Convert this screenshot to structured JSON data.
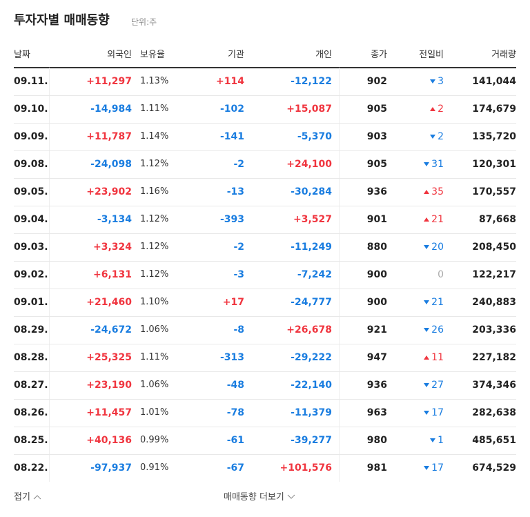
{
  "header": {
    "title": "투자자별 매매동향",
    "unit": "단위:주"
  },
  "table": {
    "columns": [
      "날짜",
      "외국인",
      "보유율",
      "기관",
      "개인",
      "종가",
      "전일비",
      "거래량"
    ],
    "rows": [
      {
        "date": "09.11.",
        "foreign": "+11,297",
        "holding": "1.13%",
        "institution": "+114",
        "individual": "-12,122",
        "close": "902",
        "change": "3",
        "dir": "down",
        "volume": "141,044"
      },
      {
        "date": "09.10.",
        "foreign": "-14,984",
        "holding": "1.11%",
        "institution": "-102",
        "individual": "+15,087",
        "close": "905",
        "change": "2",
        "dir": "up",
        "volume": "174,679"
      },
      {
        "date": "09.09.",
        "foreign": "+11,787",
        "holding": "1.14%",
        "institution": "-141",
        "individual": "-5,370",
        "close": "903",
        "change": "2",
        "dir": "down",
        "volume": "135,720"
      },
      {
        "date": "09.08.",
        "foreign": "-24,098",
        "holding": "1.12%",
        "institution": "-2",
        "individual": "+24,100",
        "close": "905",
        "change": "31",
        "dir": "down",
        "volume": "120,301"
      },
      {
        "date": "09.05.",
        "foreign": "+23,902",
        "holding": "1.16%",
        "institution": "-13",
        "individual": "-30,284",
        "close": "936",
        "change": "35",
        "dir": "up",
        "volume": "170,557"
      },
      {
        "date": "09.04.",
        "foreign": "-3,134",
        "holding": "1.12%",
        "institution": "-393",
        "individual": "+3,527",
        "close": "901",
        "change": "21",
        "dir": "up",
        "volume": "87,668"
      },
      {
        "date": "09.03.",
        "foreign": "+3,324",
        "holding": "1.12%",
        "institution": "-2",
        "individual": "-11,249",
        "close": "880",
        "change": "20",
        "dir": "down",
        "volume": "208,450"
      },
      {
        "date": "09.02.",
        "foreign": "+6,131",
        "holding": "1.12%",
        "institution": "-3",
        "individual": "-7,242",
        "close": "900",
        "change": "0",
        "dir": "flat",
        "volume": "122,217"
      },
      {
        "date": "09.01.",
        "foreign": "+21,460",
        "holding": "1.10%",
        "institution": "+17",
        "individual": "-24,777",
        "close": "900",
        "change": "21",
        "dir": "down",
        "volume": "240,883"
      },
      {
        "date": "08.29.",
        "foreign": "-24,672",
        "holding": "1.06%",
        "institution": "-8",
        "individual": "+26,678",
        "close": "921",
        "change": "26",
        "dir": "down",
        "volume": "203,336"
      },
      {
        "date": "08.28.",
        "foreign": "+25,325",
        "holding": "1.11%",
        "institution": "-313",
        "individual": "-29,222",
        "close": "947",
        "change": "11",
        "dir": "up",
        "volume": "227,182"
      },
      {
        "date": "08.27.",
        "foreign": "+23,190",
        "holding": "1.06%",
        "institution": "-48",
        "individual": "-22,140",
        "close": "936",
        "change": "27",
        "dir": "down",
        "volume": "374,346"
      },
      {
        "date": "08.26.",
        "foreign": "+11,457",
        "holding": "1.01%",
        "institution": "-78",
        "individual": "-11,379",
        "close": "963",
        "change": "17",
        "dir": "down",
        "volume": "282,638"
      },
      {
        "date": "08.25.",
        "foreign": "+40,136",
        "holding": "0.99%",
        "institution": "-61",
        "individual": "-39,277",
        "close": "980",
        "change": "1",
        "dir": "down",
        "volume": "485,651"
      },
      {
        "date": "08.22.",
        "foreign": "-97,937",
        "holding": "0.91%",
        "institution": "-67",
        "individual": "+101,576",
        "close": "981",
        "change": "17",
        "dir": "down",
        "volume": "674,529"
      }
    ]
  },
  "footer": {
    "collapse": "접기",
    "more": "매매동향 더보기"
  }
}
